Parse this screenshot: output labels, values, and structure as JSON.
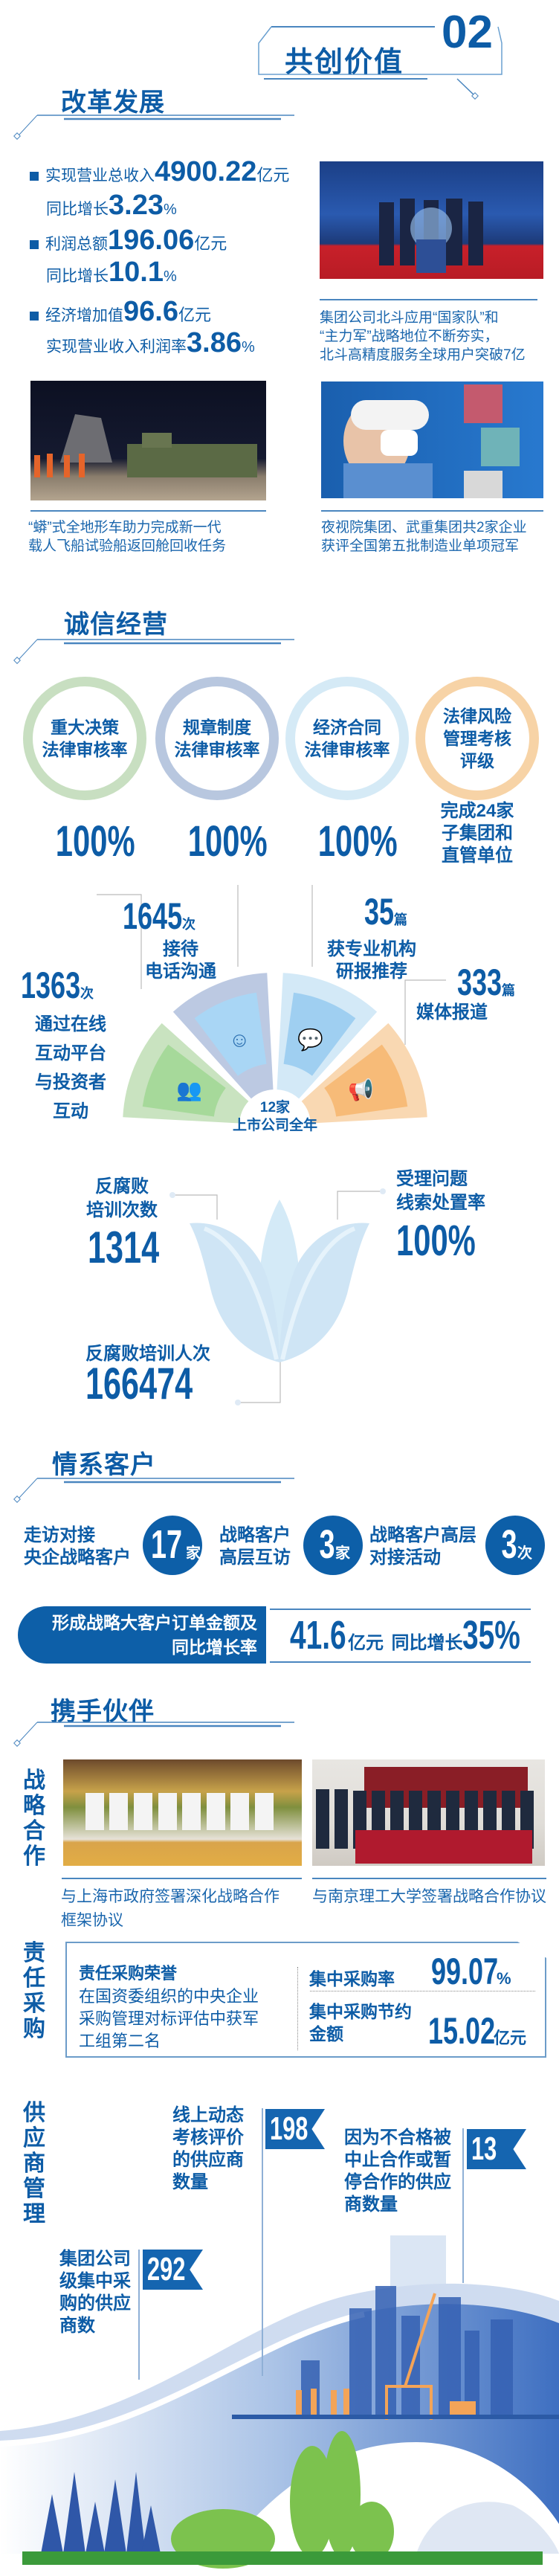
{
  "header": {
    "number": "02",
    "title": "共创价值"
  },
  "reform": {
    "title": "改革发展",
    "stats": [
      {
        "label": "实现营业总收入",
        "value": "4900.22",
        "unit": "亿元"
      },
      {
        "label": "同比增长",
        "value": "3.23",
        "unit": "%"
      },
      {
        "label": "利润总额",
        "value": "196.06",
        "unit": "亿元"
      },
      {
        "label": "同比增长",
        "value": "10.1",
        "unit": "%"
      },
      {
        "label": "经济增加值",
        "value": "96.6",
        "unit": "亿元"
      },
      {
        "label": "实现营业收入利润率",
        "value": "3.86",
        "unit": "%"
      }
    ],
    "captions": [
      [
        "集团公司北斗应用“国家队”和",
        "“主力军”战略地位不断夯实，",
        "北斗高精度服务全球用户突破7亿"
      ],
      [
        "“蟒”式全地形车助力完成新一代",
        "载人飞船试验船返回舱回收任务"
      ],
      [
        "夜视院集团、武重集团共2家企业",
        "获评全国第五批制造业单项冠军"
      ]
    ]
  },
  "integrity": {
    "title": "诚信经营",
    "rings": [
      {
        "lines": [
          "重大决策",
          "法律审核率"
        ],
        "value": "100%",
        "color": "#c8dfc1"
      },
      {
        "lines": [
          "规章制度",
          "法律审核率"
        ],
        "value": "100%",
        "color": "#b8c7df"
      },
      {
        "lines": [
          "经济合同",
          "法律审核率"
        ],
        "value": "100%",
        "color": "#d5eaf6"
      },
      {
        "lines": [
          "法律风险",
          "管理考核",
          "评级"
        ],
        "value_lines": [
          "完成24家",
          "子集团和",
          "直管单位"
        ],
        "color": "#f7d3a6"
      }
    ],
    "fan": {
      "center": [
        "12家",
        "上市公司全年"
      ],
      "items": [
        {
          "value": "1363",
          "unit": "次",
          "lines": [
            "通过在线",
            "互动平台",
            "与投资者",
            "互动"
          ],
          "color": "#c9e3c0",
          "inner": "#a6d99a",
          "icon": "people-chat-icon"
        },
        {
          "value": "1645",
          "unit": "次",
          "lines": [
            "接待",
            "电话沟通"
          ],
          "color": "#bcc9e2",
          "inner": "#a9d6f5",
          "icon": "smiley-phone-icon"
        },
        {
          "value": "35",
          "unit": "篇",
          "lines": [
            "获专业机构",
            "研报推荐"
          ],
          "color": "#d3e9f7",
          "inner": "#9fcff1",
          "icon": "speaker-report-icon"
        },
        {
          "value": "333",
          "unit": "篇",
          "lines": [
            "媒体报道"
          ],
          "color": "#f9d8b2",
          "inner": "#f7bb78",
          "icon": "megaphone-icon"
        }
      ]
    },
    "anticorruption": {
      "training_count": {
        "lines": [
          "反腐败",
          "培训次数"
        ],
        "value": "1314"
      },
      "clue_rate": {
        "lines": [
          "受理问题",
          "线索处置率"
        ],
        "value": "100%"
      },
      "training_people": {
        "label": "反腐败培训人次",
        "value": "166474"
      }
    }
  },
  "customers": {
    "title": "情系客户",
    "items": [
      {
        "lines": [
          "走访对接",
          "央企战略客户"
        ],
        "value": "17",
        "unit": "家"
      },
      {
        "lines": [
          "战略客户",
          "高层互访"
        ],
        "value": "3",
        "unit": "家"
      },
      {
        "lines": [
          "战略客户高层",
          "对接活动"
        ],
        "value": "3",
        "unit": "次"
      }
    ],
    "banner": {
      "lines": [
        "形成战略大客户订单金额及",
        "同比增长率"
      ],
      "amount": "41.6",
      "amount_unit": "亿元",
      "growth_label": "同比增长",
      "growth": "35%"
    }
  },
  "partners": {
    "title": "携手伙伴",
    "strategic": {
      "label": "战略合作",
      "captions": [
        [
          "与上海市政府签署深化战略合作",
          "框架协议"
        ],
        [
          "与南京理工大学签署战略合作协议"
        ]
      ]
    },
    "procurement": {
      "label": "责任采购",
      "honor_title": "责任采购荣誉",
      "honor_lines": [
        "在国资委组织的中央企业",
        "采购管理对标评估中获军",
        "工组第二名"
      ],
      "rate_label": "集中采购率",
      "rate": "99.07",
      "rate_unit": "%",
      "saving_lines": [
        "集中采购节约",
        "金额"
      ],
      "saving": "15.02",
      "saving_unit": "亿元"
    },
    "suppliers": {
      "label": "供应商管理",
      "items": [
        {
          "lines": [
            "线上动态",
            "考核评价",
            "的供应商",
            "数量"
          ],
          "value": "198"
        },
        {
          "lines": [
            "因为不合格被",
            "中止合作或暂",
            "停合作的供应",
            "商数量"
          ],
          "value": "13"
        },
        {
          "lines": [
            "集团公司",
            "级集中采",
            "购的供应",
            "商数"
          ],
          "value": "292"
        }
      ]
    }
  },
  "colors": {
    "primary": "#0d5ca6",
    "ribbon": "#1565b0"
  }
}
